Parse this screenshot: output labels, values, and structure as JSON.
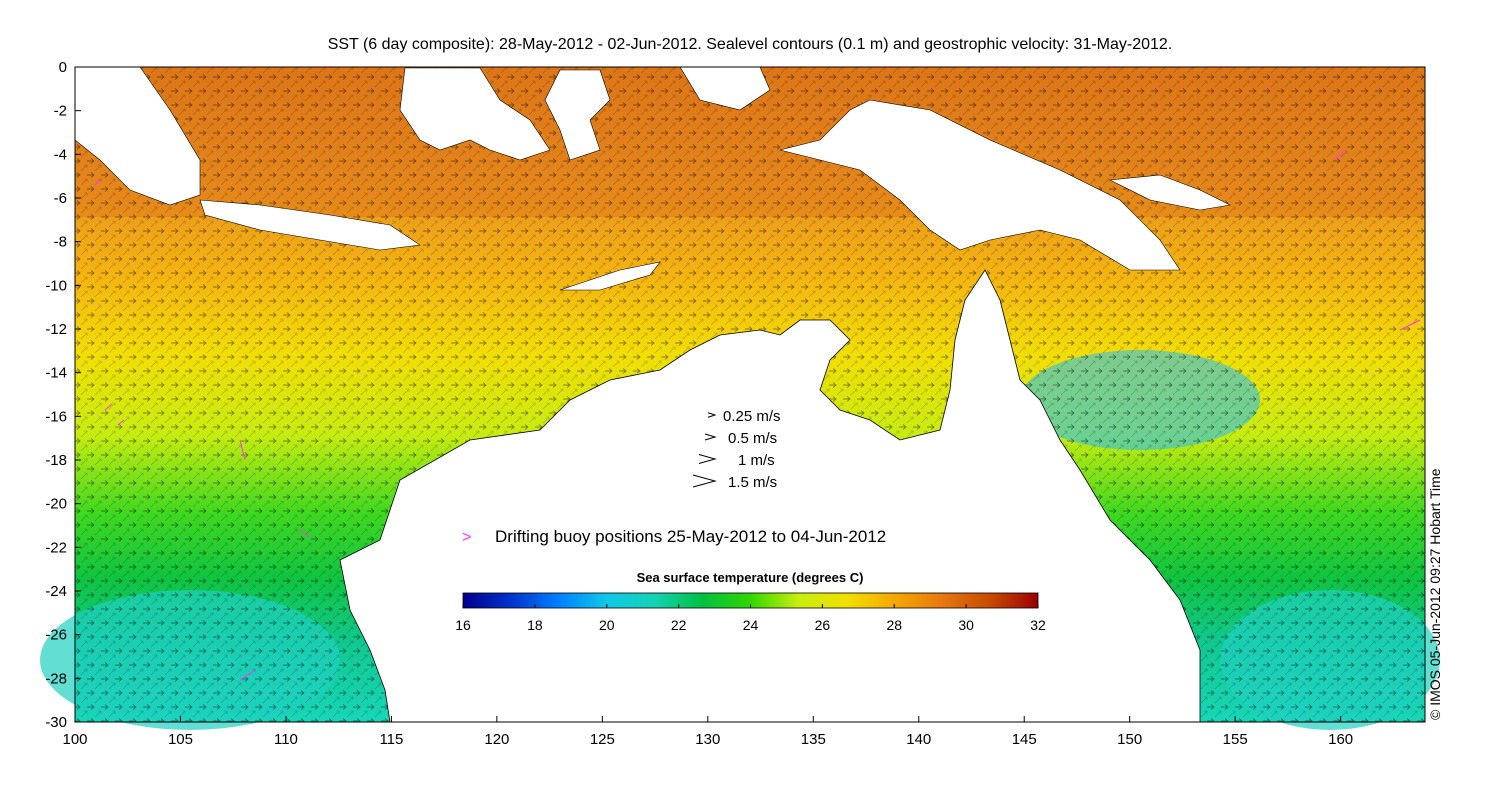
{
  "title": "SST (6 day composite): 28-May-2012 - 02-Jun-2012. Sealevel contours (0.1 m) and geostrophic velocity: 31-May-2012.",
  "credit": "© IMOS 05-Jun-2012 09:27 Hobart Time",
  "map": {
    "lon_range": [
      100,
      164
    ],
    "lat_range": [
      -30,
      0
    ],
    "x_ticks": [
      "100",
      "105",
      "110",
      "115",
      "120",
      "125",
      "130",
      "135",
      "140",
      "145",
      "150",
      "155",
      "160"
    ],
    "y_ticks": [
      "0",
      "-2",
      "-4",
      "-6",
      "-8",
      "-10",
      "-12",
      "-14",
      "-16",
      "-18",
      "-20",
      "-22",
      "-24",
      "-26",
      "-28",
      "-30"
    ],
    "land_color": "#ffffff",
    "contour_color": "#ffffff",
    "vector_color": "#000000"
  },
  "velocity_legend": [
    {
      "label": "0.25 m/s",
      "speed": 0.25
    },
    {
      "label": "0.5 m/s",
      "speed": 0.5
    },
    {
      "label": "1 m/s",
      "speed": 1
    },
    {
      "label": "1.5 m/s",
      "speed": 1.5
    }
  ],
  "buoy_legend": {
    "label": "Drifting buoy positions 25-May-2012 to 04-Jun-2012",
    "marker": ">",
    "color": "#ff33ff"
  },
  "colorbar": {
    "title": "Sea surface temperature (degrees C)",
    "ticks": [
      "16",
      "18",
      "20",
      "22",
      "24",
      "26",
      "28",
      "30",
      "32"
    ],
    "min": 16,
    "max": 32,
    "colors": [
      "#00008b",
      "#0033cc",
      "#0080ff",
      "#10c8e8",
      "#14d2b4",
      "#00c040",
      "#33d600",
      "#c8ee10",
      "#f0e000",
      "#f5a800",
      "#e87810",
      "#c84a00",
      "#9a0000"
    ]
  }
}
